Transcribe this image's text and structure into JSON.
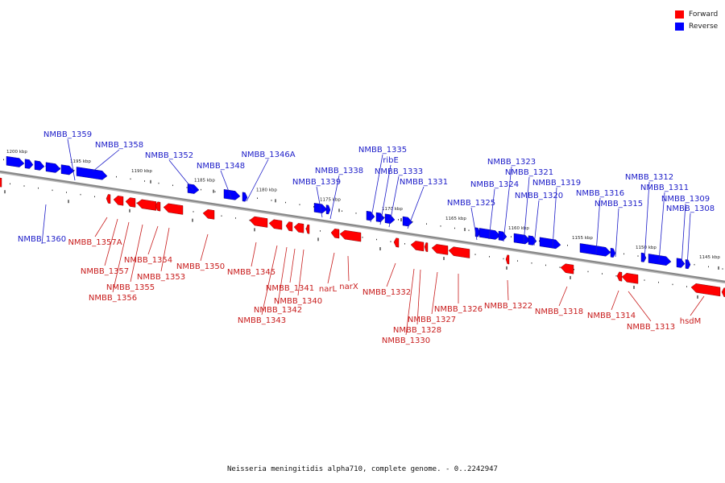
{
  "legend": [
    {
      "label": "Forward",
      "color": "#ff0000"
    },
    {
      "label": "Reverse",
      "color": "#0000ff"
    }
  ],
  "caption": "Neisseria meningitidis alpha710, complete genome. - 0..2242947",
  "colors": {
    "forward": "#ff0000",
    "reverse": "#0000ff",
    "backbone": "#888888"
  },
  "scale_ticks": [
    "1200 kbp",
    "1195 kbp",
    "1190 kbp",
    "1185 kbp",
    "1180 kbp",
    "1175 kbp",
    "1170 kbp",
    "1165 kbp",
    "1160 kbp",
    "1155 kbp",
    "1150 kbp",
    "1145 kbp"
  ],
  "reverse_genes": [
    "NMBB_1360",
    "NMBB_1359",
    "NMBB_1358",
    "NMBB_1352",
    "NMBB_1348",
    "NMBB_1346A",
    "NMBB_1339",
    "NMBB_1338",
    "NMBB_1335",
    "ribE",
    "NMBB_1333",
    "NMBB_1331",
    "NMBB_1325",
    "NMBB_1324",
    "NMBB_1323",
    "NMBB_1321",
    "NMBB_1320",
    "NMBB_1319",
    "NMBB_1316",
    "NMBB_1315",
    "NMBB_1312",
    "NMBB_1311",
    "NMBB_1309",
    "NMBB_1308"
  ],
  "forward_genes": [
    "NMBB_1357A",
    "NMBB_1357",
    "NMBB_1356",
    "NMBB_1355",
    "NMBB_1354",
    "NMBB_1353",
    "NMBB_1350",
    "NMBB_1345",
    "NMBB_1343",
    "NMBB_1342",
    "NMBB_1341",
    "NMBB_1340",
    "narL",
    "narX",
    "NMBB_1332",
    "NMBB_1330",
    "NMBB_1328",
    "NMBB_1327",
    "NMBB_1326",
    "NMBB_1322",
    "NMBB_1318",
    "NMBB_1314",
    "NMBB_1313",
    "hsdM"
  ]
}
